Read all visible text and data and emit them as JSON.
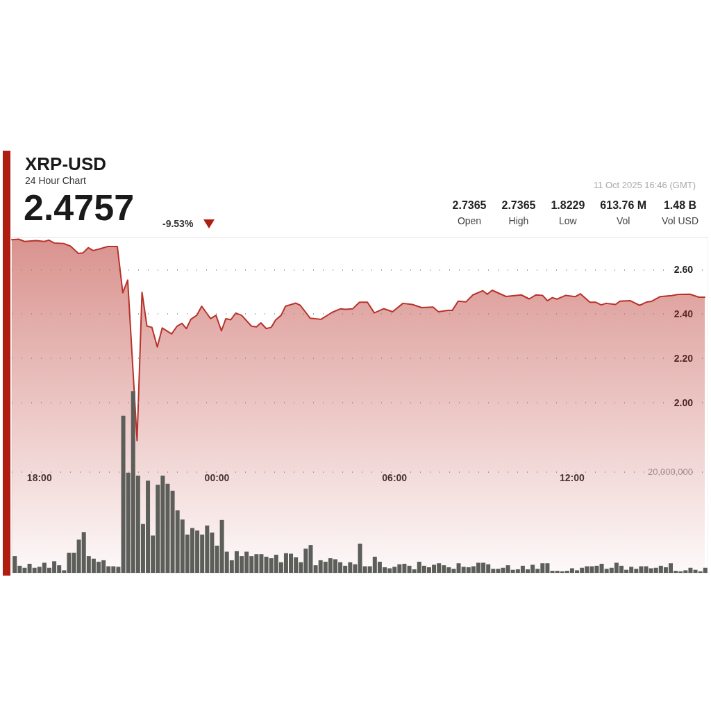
{
  "chart_data": {
    "type": "area",
    "title": "XRP-USD",
    "subtitle": "24 Hour Chart",
    "annotations": [
      "2.4757",
      "-9.53%",
      "2.7365",
      "Open",
      "2.7365",
      "High",
      "1.8229",
      "Low",
      "613.76 M",
      "Vol",
      "1.48 B",
      "Vol USD",
      "11 Oct 2025 16:46 (GMT)"
    ],
    "x": [
      "2025-10-10T17:10",
      "2025-10-10T17:20",
      "2025-10-10T17:30",
      "2025-10-10T17:40",
      "2025-10-10T17:50",
      "2025-10-10T18:00",
      "2025-10-10T18:10",
      "2025-10-10T18:20",
      "2025-10-10T18:30",
      "2025-10-10T18:40",
      "2025-10-10T18:50",
      "2025-10-10T19:00",
      "2025-10-10T19:10",
      "2025-10-10T19:20",
      "2025-10-10T19:30",
      "2025-10-10T19:40",
      "2025-10-10T19:50",
      "2025-10-10T20:00",
      "2025-10-10T20:10",
      "2025-10-10T20:20",
      "2025-10-10T20:30",
      "2025-10-10T20:40",
      "2025-10-10T20:50",
      "2025-10-10T21:00",
      "2025-10-10T21:10",
      "2025-10-10T21:20",
      "2025-10-10T21:30",
      "2025-10-10T21:40",
      "2025-10-10T21:50",
      "2025-10-10T22:00",
      "2025-10-10T22:10",
      "2025-10-10T22:20",
      "2025-10-10T22:30",
      "2025-10-10T22:40",
      "2025-10-10T22:50",
      "2025-10-10T23:00",
      "2025-10-10T23:10",
      "2025-10-10T23:20",
      "2025-10-10T23:30",
      "2025-10-10T23:40",
      "2025-10-10T23:50",
      "2025-10-11T00:00",
      "2025-10-11T00:10",
      "2025-10-11T00:20",
      "2025-10-11T00:30",
      "2025-10-11T00:40",
      "2025-10-11T00:50",
      "2025-10-11T01:00",
      "2025-10-11T01:10",
      "2025-10-11T01:20",
      "2025-10-11T01:30",
      "2025-10-11T01:40",
      "2025-10-11T01:50",
      "2025-10-11T02:00",
      "2025-10-11T02:10",
      "2025-10-11T02:20",
      "2025-10-11T02:30",
      "2025-10-11T02:40",
      "2025-10-11T02:50",
      "2025-10-11T03:00",
      "2025-10-11T03:10",
      "2025-10-11T03:20",
      "2025-10-11T03:30",
      "2025-10-11T03:40",
      "2025-10-11T03:50",
      "2025-10-11T04:00",
      "2025-10-11T04:10",
      "2025-10-11T04:20",
      "2025-10-11T04:30",
      "2025-10-11T04:40",
      "2025-10-11T04:50",
      "2025-10-11T05:00",
      "2025-10-11T05:10",
      "2025-10-11T05:20",
      "2025-10-11T05:30",
      "2025-10-11T05:40",
      "2025-10-11T05:50",
      "2025-10-11T06:00",
      "2025-10-11T06:10",
      "2025-10-11T06:20",
      "2025-10-11T06:30",
      "2025-10-11T06:40",
      "2025-10-11T06:50",
      "2025-10-11T07:00",
      "2025-10-11T07:10",
      "2025-10-11T07:20",
      "2025-10-11T07:30",
      "2025-10-11T07:40",
      "2025-10-11T07:50",
      "2025-10-11T08:00",
      "2025-10-11T08:10",
      "2025-10-11T08:20",
      "2025-10-11T08:30",
      "2025-10-11T08:40",
      "2025-10-11T08:50",
      "2025-10-11T09:00",
      "2025-10-11T09:10",
      "2025-10-11T09:20",
      "2025-10-11T09:30",
      "2025-10-11T09:40",
      "2025-10-11T09:50",
      "2025-10-11T10:00",
      "2025-10-11T10:10",
      "2025-10-11T10:20",
      "2025-10-11T10:30",
      "2025-10-11T10:40",
      "2025-10-11T10:50",
      "2025-10-11T11:00",
      "2025-10-11T11:10",
      "2025-10-11T11:20",
      "2025-10-11T11:30",
      "2025-10-11T11:40",
      "2025-10-11T11:50",
      "2025-10-11T12:00",
      "2025-10-11T12:10",
      "2025-10-11T12:20",
      "2025-10-11T12:30",
      "2025-10-11T12:40",
      "2025-10-11T12:50",
      "2025-10-11T13:00",
      "2025-10-11T13:10",
      "2025-10-11T13:20",
      "2025-10-11T13:30",
      "2025-10-11T13:40",
      "2025-10-11T13:50",
      "2025-10-11T14:00",
      "2025-10-11T14:10",
      "2025-10-11T14:20",
      "2025-10-11T14:30",
      "2025-10-11T14:40",
      "2025-10-11T14:50",
      "2025-10-11T15:00",
      "2025-10-11T15:10",
      "2025-10-11T15:20",
      "2025-10-11T15:30",
      "2025-10-11T15:40",
      "2025-10-11T15:50",
      "2025-10-11T16:00",
      "2025-10-11T16:10",
      "2025-10-11T16:20",
      "2025-10-11T16:30"
    ],
    "series": [
      {
        "color": "#b8322a",
        "x": [
          "2025-10-10T17:04",
          "2025-10-10T17:18",
          "2025-10-10T17:30",
          "2025-10-10T17:53",
          "2025-10-10T18:10",
          "2025-10-10T18:19",
          "2025-10-10T18:30",
          "2025-10-10T18:49",
          "2025-10-10T19:03",
          "2025-10-10T19:19",
          "2025-10-10T19:28",
          "2025-10-10T19:39",
          "2025-10-10T19:49",
          "2025-10-10T20:03",
          "2025-10-10T20:18",
          "2025-10-10T20:38",
          "2025-10-10T20:49",
          "2025-10-10T20:59",
          "2025-10-10T21:18",
          "2025-10-10T21:28",
          "2025-10-10T21:38",
          "2025-10-10T21:48",
          "2025-10-10T21:59",
          "2025-10-10T22:09",
          "2025-10-10T22:28",
          "2025-10-10T22:39",
          "2025-10-10T22:49",
          "2025-10-10T22:58",
          "2025-10-10T23:07",
          "2025-10-10T23:19",
          "2025-10-10T23:29",
          "2025-10-10T23:47",
          "2025-10-10T23:58",
          "2025-10-11T00:09",
          "2025-10-11T00:18",
          "2025-10-11T00:28",
          "2025-10-11T00:38",
          "2025-10-11T00:50",
          "2025-10-11T01:10",
          "2025-10-11T01:20",
          "2025-10-11T01:29",
          "2025-10-11T01:40",
          "2025-10-11T01:50",
          "2025-10-11T01:59",
          "2025-10-11T02:10",
          "2025-10-11T02:19",
          "2025-10-11T02:40",
          "2025-10-11T02:49",
          "2025-10-11T03:09",
          "2025-10-11T03:31",
          "2025-10-11T03:53",
          "2025-10-11T04:10",
          "2025-10-11T04:21",
          "2025-10-11T04:35",
          "2025-10-11T04:49",
          "2025-10-11T05:05",
          "2025-10-11T05:19",
          "2025-10-11T05:38",
          "2025-10-11T05:56",
          "2025-10-11T06:17",
          "2025-10-11T06:36",
          "2025-10-11T06:55",
          "2025-10-11T07:18",
          "2025-10-11T07:29",
          "2025-10-11T07:48",
          "2025-10-11T07:57",
          "2025-10-11T08:09",
          "2025-10-11T08:25",
          "2025-10-11T08:39",
          "2025-10-11T08:59",
          "2025-10-11T09:08",
          "2025-10-11T09:18",
          "2025-10-11T09:46",
          "2025-10-11T10:17",
          "2025-10-11T10:33",
          "2025-10-11T10:47",
          "2025-10-11T11:00",
          "2025-10-11T11:10",
          "2025-10-11T11:20",
          "2025-10-11T11:29",
          "2025-10-11T11:47",
          "2025-10-11T12:06",
          "2025-10-11T12:17",
          "2025-10-11T12:36",
          "2025-10-11T12:48",
          "2025-10-11T12:59",
          "2025-10-11T13:09",
          "2025-10-11T13:28",
          "2025-10-11T13:37",
          "2025-10-11T13:58",
          "2025-10-11T14:17",
          "2025-10-11T14:30",
          "2025-10-11T14:42",
          "2025-10-11T14:58",
          "2025-10-11T15:22",
          "2025-10-11T15:35",
          "2025-10-11T15:59",
          "2025-10-11T16:17",
          "2025-10-11T16:29"
        ],
        "values": [
          2.735,
          2.737,
          2.727,
          2.731,
          2.727,
          2.733,
          2.72,
          2.718,
          2.706,
          2.673,
          2.675,
          2.699,
          2.686,
          2.694,
          2.704,
          2.704,
          2.496,
          2.553,
          1.829,
          2.498,
          2.345,
          2.34,
          2.251,
          2.337,
          2.31,
          2.345,
          2.358,
          2.334,
          2.376,
          2.394,
          2.435,
          2.379,
          2.394,
          2.324,
          2.379,
          2.374,
          2.404,
          2.394,
          2.345,
          2.342,
          2.36,
          2.334,
          2.34,
          2.373,
          2.394,
          2.435,
          2.449,
          2.439,
          2.381,
          2.376,
          2.407,
          2.423,
          2.421,
          2.423,
          2.453,
          2.453,
          2.405,
          2.424,
          2.41,
          2.448,
          2.443,
          2.429,
          2.431,
          2.41,
          2.416,
          2.416,
          2.458,
          2.455,
          2.486,
          2.505,
          2.489,
          2.507,
          2.479,
          2.486,
          2.468,
          2.486,
          2.484,
          2.46,
          2.474,
          2.467,
          2.484,
          2.478,
          2.491,
          2.453,
          2.453,
          2.441,
          2.448,
          2.443,
          2.458,
          2.46,
          2.439,
          2.453,
          2.458,
          2.478,
          2.483,
          2.488,
          2.489,
          2.476,
          2.476
        ]
      },
      {
        "type": "bar",
        "axis": "y2",
        "color": "#5c5e5a",
        "values": [
          3300000,
          1400000,
          1000000,
          1800000,
          1000000,
          1200000,
          2000000,
          1000000,
          2300000,
          1500000,
          500000,
          4000000,
          4000000,
          6600000,
          8100000,
          3300000,
          2800000,
          2200000,
          2500000,
          1300000,
          1300000,
          1200000,
          31200000,
          19900000,
          36100000,
          19300000,
          9700000,
          18300000,
          7400000,
          17500000,
          19300000,
          17700000,
          16300000,
          12400000,
          10600000,
          7600000,
          8900000,
          8400000,
          7600000,
          9400000,
          8000000,
          5400000,
          10500000,
          4200000,
          2500000,
          4300000,
          3300000,
          4200000,
          3300000,
          3700000,
          3700000,
          3200000,
          2900000,
          3600000,
          2100000,
          3900000,
          3800000,
          3100000,
          2100000,
          4800000,
          5500000,
          1500000,
          2500000,
          2200000,
          2900000,
          2700000,
          2100000,
          1400000,
          2100000,
          1700000,
          5800000,
          1300000,
          1300000,
          3200000,
          2200000,
          1100000,
          900000,
          1200000,
          1700000,
          1800000,
          1400000,
          700000,
          2200000,
          1400000,
          1100000,
          1600000,
          1900000,
          1500000,
          1100000,
          800000,
          1900000,
          1200000,
          1100000,
          1300000,
          2000000,
          2000000,
          1700000,
          800000,
          800000,
          1000000,
          1500000,
          600000,
          700000,
          1400000,
          700000,
          1600000,
          800000,
          1900000,
          1900000,
          400000,
          400000,
          300000,
          400000,
          900000,
          500000,
          1000000,
          1300000,
          1300000,
          1400000,
          1800000,
          800000,
          1000000,
          2000000,
          1400000,
          600000,
          1200000,
          800000,
          1300000,
          1300000,
          900000,
          1000000,
          1400000,
          1100000,
          1900000,
          400000,
          300000,
          500000,
          1000000,
          600000,
          300000,
          1000000
        ]
      }
    ],
    "xlim": [
      "2025-10-10T17:04",
      "2025-10-11T16:36"
    ],
    "xticks": [
      {
        "value": "2025-10-10T18:00",
        "label": "18:00"
      },
      {
        "value": "2025-10-11T00:00",
        "label": "00:00"
      },
      {
        "value": "2025-10-11T06:00",
        "label": "06:00"
      },
      {
        "value": "2025-10-11T12:00",
        "label": "12:00"
      }
    ],
    "ylim": [
      1.233,
      2.745
    ],
    "yticks": [
      {
        "value": 2,
        "label": "2.00"
      },
      {
        "value": 2.2,
        "label": "2.20"
      },
      {
        "value": 2.4,
        "label": "2.40"
      },
      {
        "value": 2.6,
        "label": "2.60"
      }
    ],
    "y2lim": [
      0,
      66600000
    ],
    "y2ticks": [
      {
        "value": 20000000,
        "label": "20,000,000"
      }
    ],
    "grid": "y"
  }
}
